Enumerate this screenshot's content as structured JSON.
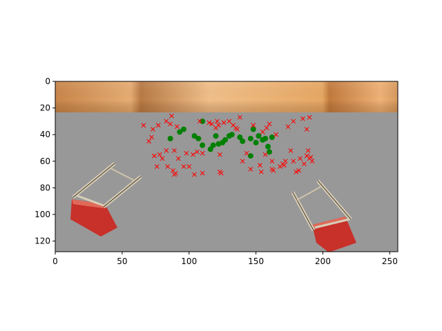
{
  "chart_data": {
    "type": "scatter",
    "title": "",
    "xlabel": "",
    "ylabel": "",
    "xlim": [
      0,
      256
    ],
    "ylim": [
      128,
      0
    ],
    "y_inverted": true,
    "background": "image: wooden shelf top band, gray floor, two tipped-over red chairs (left and right)",
    "xticks": [
      0,
      50,
      100,
      150,
      200,
      250
    ],
    "yticks": [
      0,
      20,
      40,
      60,
      80,
      100,
      120
    ],
    "series": [
      {
        "marker": "circle",
        "color": "#008000",
        "points": [
          [
            86,
            43
          ],
          [
            93,
            38
          ],
          [
            96,
            36
          ],
          [
            104,
            41
          ],
          [
            107,
            43
          ],
          [
            110,
            48
          ],
          [
            116,
            51
          ],
          [
            118,
            48
          ],
          [
            122,
            47
          ],
          [
            125,
            46
          ],
          [
            127,
            44
          ],
          [
            130,
            41
          ],
          [
            132,
            40
          ],
          [
            138,
            42
          ],
          [
            140,
            45
          ],
          [
            146,
            43
          ],
          [
            148,
            36
          ],
          [
            150,
            46
          ],
          [
            152,
            41
          ],
          [
            155,
            44
          ],
          [
            157,
            43
          ],
          [
            159,
            49
          ],
          [
            160,
            53
          ],
          [
            162,
            42
          ],
          [
            120,
            41
          ],
          [
            146,
            56
          ],
          [
            110,
            30
          ]
        ]
      },
      {
        "marker": "x",
        "color": "#ff0000",
        "points": [
          [
            66,
            33
          ],
          [
            70,
            45
          ],
          [
            72,
            42
          ],
          [
            73,
            36
          ],
          [
            74,
            56
          ],
          [
            76,
            64
          ],
          [
            77,
            33
          ],
          [
            78,
            55
          ],
          [
            80,
            58
          ],
          [
            83,
            30
          ],
          [
            83,
            52
          ],
          [
            84,
            64
          ],
          [
            86,
            32
          ],
          [
            87,
            26
          ],
          [
            88,
            67
          ],
          [
            89,
            52
          ],
          [
            89,
            70
          ],
          [
            90,
            69
          ],
          [
            91,
            34
          ],
          [
            92,
            58
          ],
          [
            96,
            64
          ],
          [
            98,
            54
          ],
          [
            100,
            64
          ],
          [
            103,
            55
          ],
          [
            104,
            70
          ],
          [
            106,
            53
          ],
          [
            108,
            30
          ],
          [
            110,
            54
          ],
          [
            110,
            69
          ],
          [
            115,
            31
          ],
          [
            117,
            32
          ],
          [
            120,
            35
          ],
          [
            121,
            30
          ],
          [
            122,
            33
          ],
          [
            123,
            55
          ],
          [
            123,
            68
          ],
          [
            124,
            69
          ],
          [
            126,
            31
          ],
          [
            130,
            30
          ],
          [
            133,
            33
          ],
          [
            135,
            35
          ],
          [
            136,
            36
          ],
          [
            138,
            27
          ],
          [
            140,
            60
          ],
          [
            143,
            54
          ],
          [
            146,
            66
          ],
          [
            148,
            33
          ],
          [
            153,
            63
          ],
          [
            154,
            68
          ],
          [
            155,
            38
          ],
          [
            157,
            55
          ],
          [
            158,
            35
          ],
          [
            160,
            32
          ],
          [
            162,
            60
          ],
          [
            162,
            66
          ],
          [
            163,
            67
          ],
          [
            165,
            40
          ],
          [
            168,
            64
          ],
          [
            170,
            62
          ],
          [
            171,
            63
          ],
          [
            172,
            60
          ],
          [
            174,
            34
          ],
          [
            176,
            52
          ],
          [
            178,
            30
          ],
          [
            178,
            60
          ],
          [
            180,
            68
          ],
          [
            182,
            67
          ],
          [
            183,
            58
          ],
          [
            185,
            28
          ],
          [
            186,
            62
          ],
          [
            188,
            36
          ],
          [
            188,
            56
          ],
          [
            189,
            52
          ],
          [
            190,
            27
          ],
          [
            190,
            58
          ],
          [
            191,
            57
          ],
          [
            192,
            60
          ]
        ]
      }
    ]
  }
}
